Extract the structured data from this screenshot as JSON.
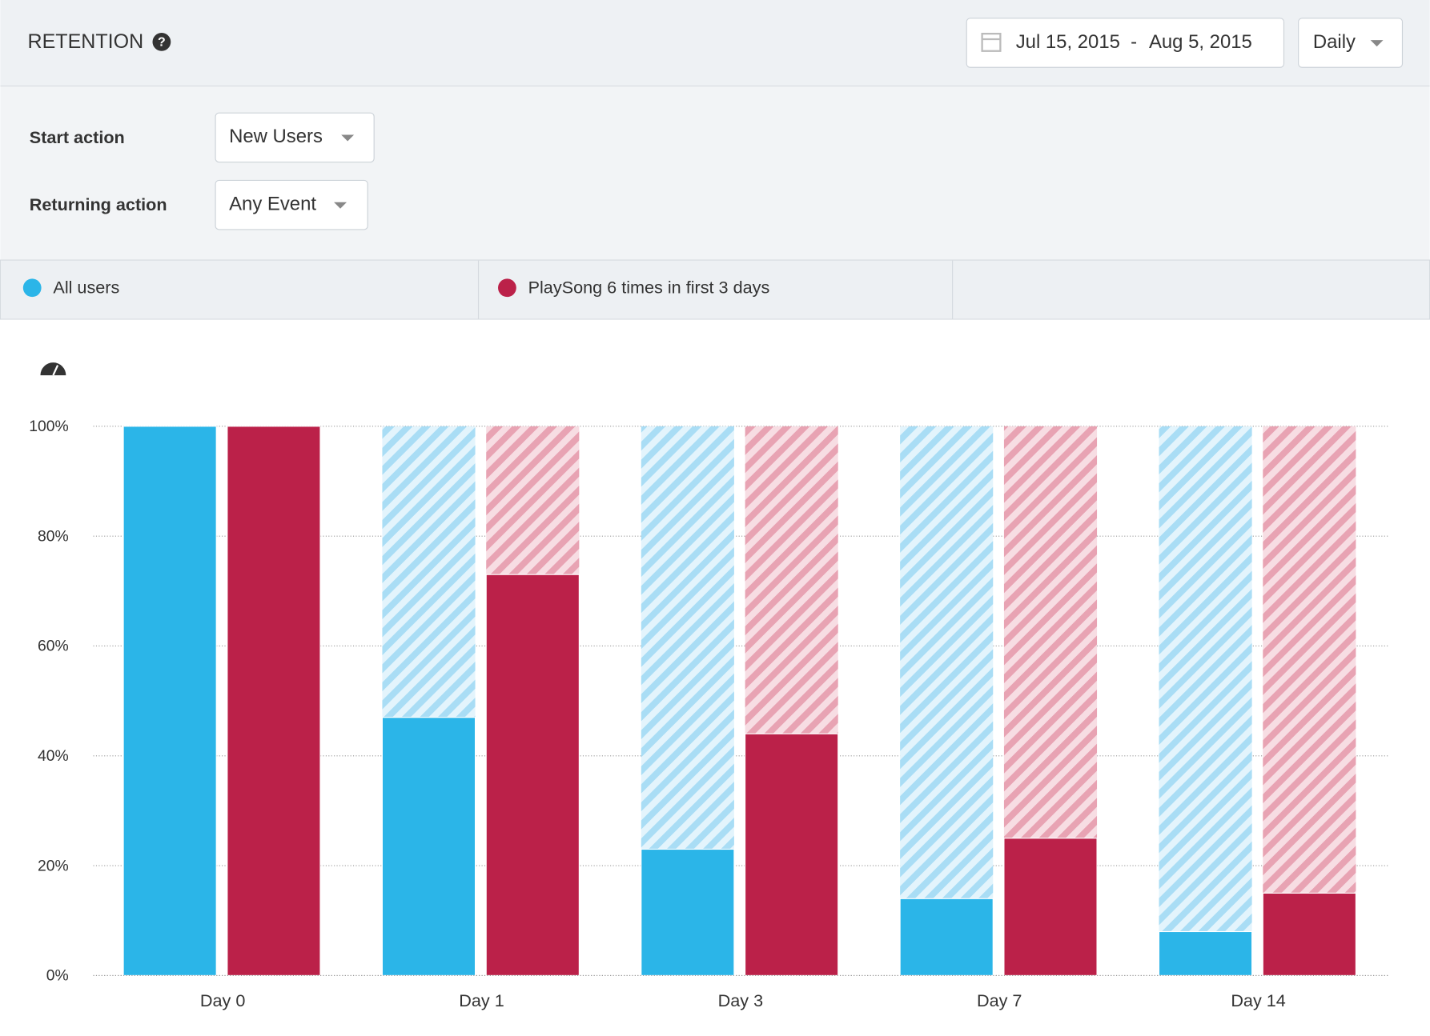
{
  "header": {
    "title": "RETENTION",
    "date_start": "Jul 15, 2015",
    "date_separator": "-",
    "date_end": "Aug 5, 2015",
    "interval": "Daily"
  },
  "filters": {
    "start_label": "Start action",
    "start_value": "New Users",
    "return_label": "Returning action",
    "return_value": "Any Event"
  },
  "chart_data": {
    "type": "bar",
    "categories": [
      "Day 0",
      "Day 1",
      "Day 3",
      "Day 7",
      "Day 14"
    ],
    "series": [
      {
        "name": "All users",
        "color": "#2bb5e8",
        "values": [
          100,
          47,
          23,
          14,
          8
        ]
      },
      {
        "name": "PlaySong 6 times in first 3 days",
        "color": "#bb2149",
        "values": [
          100,
          73,
          44,
          25,
          15
        ]
      }
    ],
    "ylim": [
      0,
      100
    ],
    "yticks": [
      {
        "value": 0,
        "label": "0%"
      },
      {
        "value": 20,
        "label": "20%"
      },
      {
        "value": 40,
        "label": "40%"
      },
      {
        "value": 60,
        "label": "60%"
      },
      {
        "value": 80,
        "label": "80%"
      },
      {
        "value": 100,
        "label": "100%"
      }
    ],
    "grid": true
  }
}
